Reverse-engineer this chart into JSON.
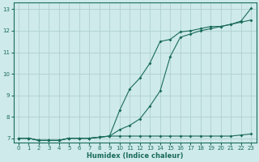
{
  "xlabel": "Humidex (Indice chaleur)",
  "bg_color": "#ceeaea",
  "grid_color": "#b0d0d0",
  "line_color": "#1a6b5a",
  "xlim": [
    -0.5,
    23.5
  ],
  "ylim": [
    6.8,
    13.3
  ],
  "yticks": [
    7,
    8,
    9,
    10,
    11,
    12,
    13
  ],
  "xticks": [
    0,
    1,
    2,
    3,
    4,
    5,
    6,
    7,
    8,
    9,
    10,
    11,
    12,
    13,
    14,
    15,
    16,
    17,
    18,
    19,
    20,
    21,
    22,
    23
  ],
  "line1_x": [
    0,
    1,
    2,
    3,
    4,
    5,
    6,
    7,
    8,
    9,
    10,
    11,
    12,
    13,
    14,
    15,
    16,
    17,
    18,
    19,
    20,
    21,
    22,
    23
  ],
  "line1_y": [
    7.0,
    7.0,
    6.9,
    6.9,
    6.9,
    7.0,
    7.0,
    7.0,
    7.05,
    7.1,
    8.3,
    9.3,
    9.8,
    10.5,
    11.5,
    11.6,
    11.95,
    12.0,
    12.1,
    12.2,
    12.2,
    12.3,
    12.45,
    13.05
  ],
  "line2_x": [
    0,
    1,
    2,
    3,
    4,
    5,
    6,
    7,
    8,
    9,
    10,
    11,
    12,
    13,
    14,
    15,
    16,
    17,
    18,
    19,
    20,
    21,
    22,
    23
  ],
  "line2_y": [
    7.0,
    7.0,
    6.9,
    6.9,
    6.9,
    7.0,
    7.0,
    7.0,
    7.05,
    7.1,
    7.4,
    7.6,
    7.9,
    8.5,
    9.2,
    10.8,
    11.7,
    11.85,
    12.0,
    12.1,
    12.2,
    12.3,
    12.4,
    12.5
  ],
  "line3_x": [
    0,
    1,
    2,
    3,
    4,
    5,
    6,
    7,
    8,
    9,
    10,
    11,
    12,
    13,
    14,
    15,
    16,
    17,
    18,
    19,
    20,
    21,
    22,
    23
  ],
  "line3_y": [
    7.0,
    7.0,
    6.9,
    6.9,
    6.9,
    7.0,
    7.0,
    7.0,
    7.05,
    7.1,
    7.1,
    7.1,
    7.1,
    7.1,
    7.1,
    7.1,
    7.1,
    7.1,
    7.1,
    7.1,
    7.1,
    7.1,
    7.15,
    7.2
  ]
}
